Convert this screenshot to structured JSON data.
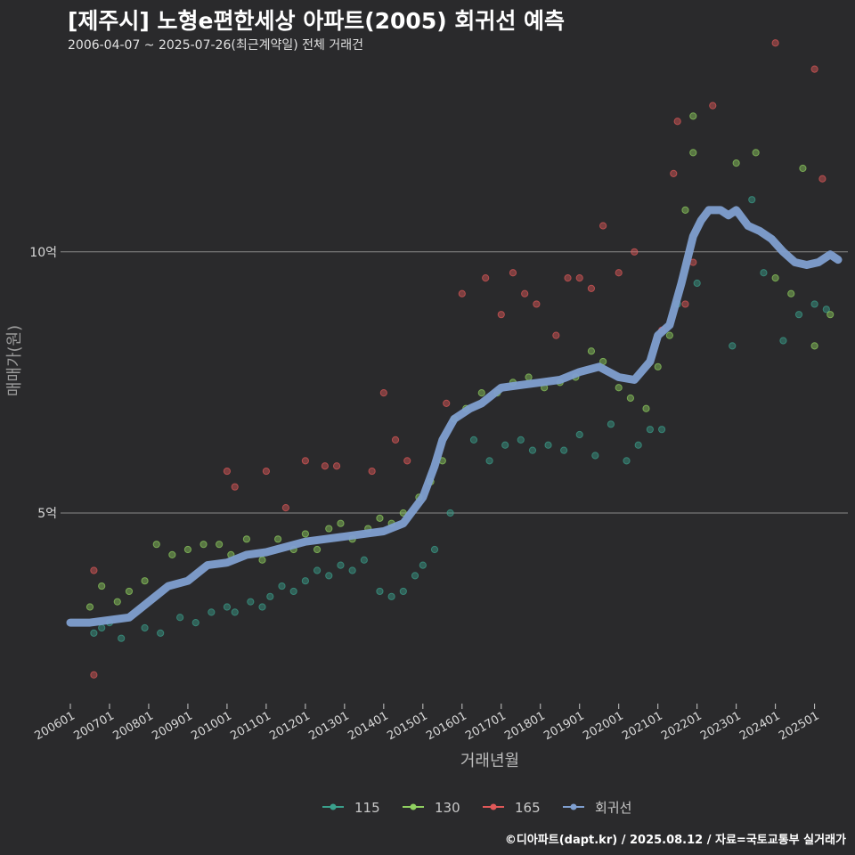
{
  "header": {
    "title": "[제주시] 노형e편한세상 아파트(2005) 회귀선 예측",
    "subtitle": "2006-04-07 ~ 2025-07-26(최근계약일) 전체 거래건"
  },
  "footer": {
    "credit": "©디아파트(dapt.kr) / 2025.08.12 / 자료=국토교통부 실거래가"
  },
  "chart_data": {
    "type": "scatter",
    "xlabel": "거래년월",
    "ylabel": "매매가(원)",
    "xlim": [
      2005.75,
      2025.85
    ],
    "ylim": [
      1.35,
      13.8
    ],
    "x_ticks": [
      "200601",
      "200701",
      "200801",
      "200901",
      "201001",
      "201101",
      "201201",
      "201301",
      "201401",
      "201501",
      "201601",
      "201701",
      "201801",
      "201901",
      "202001",
      "202101",
      "202201",
      "202301",
      "202401",
      "202501"
    ],
    "y_ticks": [
      {
        "value": 5,
        "label": "5억"
      },
      {
        "value": 10,
        "label": "10억"
      }
    ],
    "legend": [
      {
        "name": "115",
        "color": "#3aa08c"
      },
      {
        "name": "130",
        "color": "#90d060"
      },
      {
        "name": "165",
        "color": "#e05858"
      },
      {
        "name": "회귀선",
        "color": "#7f9fd0"
      }
    ],
    "series": [
      {
        "name": "115",
        "color": "#3aa08c",
        "points": [
          [
            2006.6,
            2.7
          ],
          [
            2006.8,
            2.8
          ],
          [
            2007.0,
            2.9
          ],
          [
            2007.3,
            2.6
          ],
          [
            2007.9,
            2.8
          ],
          [
            2008.3,
            2.7
          ],
          [
            2008.8,
            3.0
          ],
          [
            2009.2,
            2.9
          ],
          [
            2009.6,
            3.1
          ],
          [
            2010.0,
            3.2
          ],
          [
            2010.2,
            3.1
          ],
          [
            2010.6,
            3.3
          ],
          [
            2010.9,
            3.2
          ],
          [
            2011.1,
            3.4
          ],
          [
            2011.4,
            3.6
          ],
          [
            2011.7,
            3.5
          ],
          [
            2012.0,
            3.7
          ],
          [
            2012.3,
            3.9
          ],
          [
            2012.6,
            3.8
          ],
          [
            2012.9,
            4.0
          ],
          [
            2013.2,
            3.9
          ],
          [
            2013.5,
            4.1
          ],
          [
            2013.9,
            3.5
          ],
          [
            2014.2,
            3.4
          ],
          [
            2014.5,
            3.5
          ],
          [
            2014.8,
            3.8
          ],
          [
            2015.0,
            4.0
          ],
          [
            2015.3,
            4.3
          ],
          [
            2015.7,
            5.0
          ],
          [
            2016.3,
            6.4
          ],
          [
            2016.7,
            6.0
          ],
          [
            2017.1,
            6.3
          ],
          [
            2017.5,
            6.4
          ],
          [
            2017.8,
            6.2
          ],
          [
            2018.2,
            6.3
          ],
          [
            2018.6,
            6.2
          ],
          [
            2019.0,
            6.5
          ],
          [
            2019.4,
            6.1
          ],
          [
            2019.8,
            6.7
          ],
          [
            2020.2,
            6.0
          ],
          [
            2020.5,
            6.3
          ],
          [
            2020.8,
            6.6
          ],
          [
            2021.1,
            6.6
          ],
          [
            2021.5,
            9.0
          ],
          [
            2022.0,
            9.4
          ],
          [
            2022.9,
            8.2
          ],
          [
            2023.4,
            11.0
          ],
          [
            2023.7,
            9.6
          ],
          [
            2024.2,
            8.3
          ],
          [
            2024.6,
            8.8
          ],
          [
            2025.0,
            9.0
          ],
          [
            2025.3,
            8.9
          ]
        ]
      },
      {
        "name": "130",
        "color": "#90d060",
        "points": [
          [
            2006.5,
            3.2
          ],
          [
            2006.8,
            3.6
          ],
          [
            2007.2,
            3.3
          ],
          [
            2007.5,
            3.5
          ],
          [
            2007.9,
            3.7
          ],
          [
            2008.2,
            4.4
          ],
          [
            2008.6,
            4.2
          ],
          [
            2009.0,
            4.3
          ],
          [
            2009.4,
            4.4
          ],
          [
            2009.8,
            4.4
          ],
          [
            2010.1,
            4.2
          ],
          [
            2010.5,
            4.5
          ],
          [
            2010.9,
            4.1
          ],
          [
            2011.3,
            4.5
          ],
          [
            2011.7,
            4.3
          ],
          [
            2012.0,
            4.6
          ],
          [
            2012.3,
            4.3
          ],
          [
            2012.6,
            4.7
          ],
          [
            2012.9,
            4.8
          ],
          [
            2013.2,
            4.5
          ],
          [
            2013.6,
            4.7
          ],
          [
            2013.9,
            4.9
          ],
          [
            2014.2,
            4.8
          ],
          [
            2014.5,
            5.0
          ],
          [
            2014.9,
            5.3
          ],
          [
            2015.2,
            5.6
          ],
          [
            2015.5,
            6.0
          ],
          [
            2015.8,
            6.8
          ],
          [
            2016.1,
            7.0
          ],
          [
            2016.5,
            7.3
          ],
          [
            2016.9,
            7.3
          ],
          [
            2017.3,
            7.5
          ],
          [
            2017.7,
            7.6
          ],
          [
            2018.1,
            7.4
          ],
          [
            2018.5,
            7.5
          ],
          [
            2018.9,
            7.6
          ],
          [
            2019.3,
            8.1
          ],
          [
            2019.6,
            7.9
          ],
          [
            2020.0,
            7.4
          ],
          [
            2020.3,
            7.2
          ],
          [
            2020.7,
            7.0
          ],
          [
            2021.0,
            7.8
          ],
          [
            2021.3,
            8.4
          ],
          [
            2021.7,
            10.8
          ],
          [
            2021.9,
            11.9
          ],
          [
            2021.9,
            12.6
          ],
          [
            2023.0,
            11.7
          ],
          [
            2023.5,
            11.9
          ],
          [
            2024.0,
            9.5
          ],
          [
            2024.4,
            9.2
          ],
          [
            2024.7,
            11.6
          ],
          [
            2025.0,
            8.2
          ],
          [
            2025.4,
            8.8
          ]
        ]
      },
      {
        "name": "165",
        "color": "#e05858",
        "points": [
          [
            2006.6,
            3.9
          ],
          [
            2006.6,
            1.9
          ],
          [
            2010.0,
            5.8
          ],
          [
            2010.2,
            5.5
          ],
          [
            2011.0,
            5.8
          ],
          [
            2011.5,
            5.1
          ],
          [
            2012.0,
            6.0
          ],
          [
            2012.5,
            5.9
          ],
          [
            2012.8,
            5.9
          ],
          [
            2013.7,
            5.8
          ],
          [
            2014.0,
            7.3
          ],
          [
            2014.3,
            6.4
          ],
          [
            2014.6,
            6.0
          ],
          [
            2015.6,
            7.1
          ],
          [
            2016.0,
            9.2
          ],
          [
            2016.6,
            9.5
          ],
          [
            2017.0,
            8.8
          ],
          [
            2017.3,
            9.6
          ],
          [
            2017.6,
            9.2
          ],
          [
            2017.9,
            9.0
          ],
          [
            2018.4,
            8.4
          ],
          [
            2018.7,
            9.5
          ],
          [
            2019.0,
            9.5
          ],
          [
            2019.3,
            9.3
          ],
          [
            2019.6,
            10.5
          ],
          [
            2020.0,
            9.6
          ],
          [
            2020.4,
            10.0
          ],
          [
            2021.1,
            8.5
          ],
          [
            2021.4,
            11.5
          ],
          [
            2021.5,
            12.5
          ],
          [
            2021.7,
            9.0
          ],
          [
            2022.4,
            12.8
          ],
          [
            2024.0,
            14.0
          ],
          [
            2025.0,
            13.5
          ],
          [
            2025.2,
            11.4
          ],
          [
            2021.9,
            9.8
          ]
        ]
      }
    ],
    "regression": {
      "name": "회귀선",
      "color": "#7f9fd0",
      "points": [
        [
          2006.0,
          2.9
        ],
        [
          2006.5,
          2.9
        ],
        [
          2007.0,
          2.95
        ],
        [
          2007.5,
          3.0
        ],
        [
          2008.0,
          3.3
        ],
        [
          2008.5,
          3.6
        ],
        [
          2009.0,
          3.7
        ],
        [
          2009.5,
          4.0
        ],
        [
          2010.0,
          4.05
        ],
        [
          2010.5,
          4.2
        ],
        [
          2011.0,
          4.25
        ],
        [
          2011.5,
          4.35
        ],
        [
          2012.0,
          4.45
        ],
        [
          2012.5,
          4.5
        ],
        [
          2013.0,
          4.55
        ],
        [
          2013.5,
          4.6
        ],
        [
          2014.0,
          4.65
        ],
        [
          2014.5,
          4.8
        ],
        [
          2015.0,
          5.3
        ],
        [
          2015.3,
          5.9
        ],
        [
          2015.5,
          6.4
        ],
        [
          2015.8,
          6.8
        ],
        [
          2016.2,
          7.0
        ],
        [
          2016.5,
          7.1
        ],
        [
          2017.0,
          7.4
        ],
        [
          2017.5,
          7.45
        ],
        [
          2018.0,
          7.5
        ],
        [
          2018.5,
          7.55
        ],
        [
          2019.0,
          7.7
        ],
        [
          2019.5,
          7.8
        ],
        [
          2020.0,
          7.6
        ],
        [
          2020.4,
          7.55
        ],
        [
          2020.8,
          7.9
        ],
        [
          2021.0,
          8.4
        ],
        [
          2021.3,
          8.6
        ],
        [
          2021.6,
          9.4
        ],
        [
          2021.9,
          10.3
        ],
        [
          2022.1,
          10.6
        ],
        [
          2022.3,
          10.8
        ],
        [
          2022.6,
          10.8
        ],
        [
          2022.8,
          10.7
        ],
        [
          2023.0,
          10.8
        ],
        [
          2023.3,
          10.5
        ],
        [
          2023.6,
          10.4
        ],
        [
          2023.9,
          10.25
        ],
        [
          2024.2,
          10.0
        ],
        [
          2024.5,
          9.8
        ],
        [
          2024.8,
          9.75
        ],
        [
          2025.1,
          9.8
        ],
        [
          2025.4,
          9.95
        ],
        [
          2025.6,
          9.85
        ]
      ]
    }
  }
}
